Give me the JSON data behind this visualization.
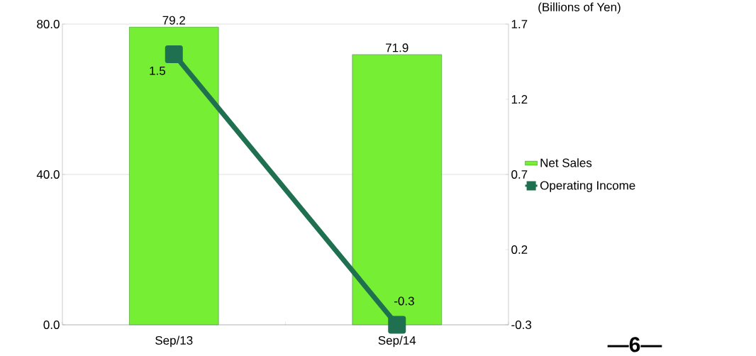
{
  "chart_data": {
    "type": "bar",
    "categories": [
      "Sep/13",
      "Sep/14"
    ],
    "series": [
      {
        "name": "Net Sales",
        "color": "#76ee33",
        "values": [
          79.2,
          71.9
        ]
      },
      {
        "name": "Operating Income",
        "type": "line",
        "axis": "y2",
        "color": "#1e7050",
        "values": [
          1.5,
          -0.3
        ]
      }
    ],
    "ylim": [
      0,
      80
    ],
    "yticks": [
      {
        "value": 0,
        "label": "0.0"
      },
      {
        "value": 40,
        "label": "40.0"
      },
      {
        "value": 80,
        "label": "80.0"
      }
    ],
    "y2lim": [
      -0.3,
      1.7
    ],
    "y2ticks": [
      -0.3,
      0.2,
      0.7,
      1.2,
      1.7
    ],
    "y2label": "(Billions of Yen)",
    "grid": "y",
    "legend": "right",
    "marker": "square",
    "data_labels": true,
    "annotations": [
      "—6—"
    ]
  }
}
